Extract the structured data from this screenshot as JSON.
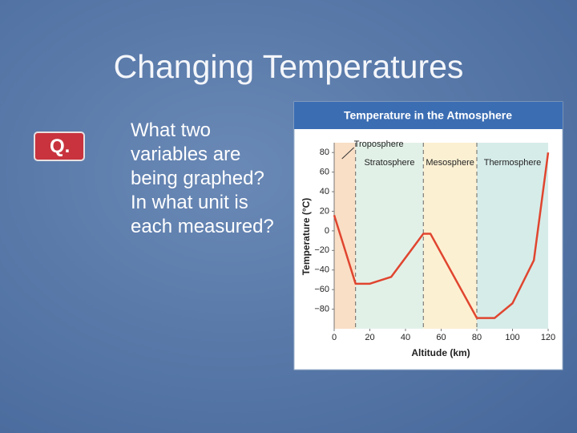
{
  "slide": {
    "title": "Changing Temperatures",
    "badge": "Q.",
    "question": "What two variables are being graphed? In what unit is each measured?"
  },
  "chart_data": {
    "type": "line",
    "title": "Temperature in the Atmosphere",
    "x_label": "Altitude (km)",
    "y_label": "Temperature (°C)",
    "x": [
      0,
      12,
      20,
      32,
      50,
      54,
      80,
      90,
      100,
      112,
      120
    ],
    "series": [
      {
        "color": "#e0452f",
        "values": [
          16,
          -54,
          -54,
          -47,
          -3,
          -3,
          -89,
          -89,
          -74,
          -30,
          80
        ]
      }
    ],
    "xlim": [
      0,
      120
    ],
    "xticks": [
      0,
      20,
      40,
      60,
      80,
      100,
      120
    ],
    "ylim": [
      -100,
      90
    ],
    "yticks": [
      {
        "value": -80,
        "label": "−80"
      },
      {
        "value": -60,
        "label": "−60"
      },
      {
        "value": -40,
        "label": "−40"
      },
      {
        "value": -20,
        "label": "−20"
      },
      0,
      20,
      40,
      60,
      80
    ],
    "layers": [
      {
        "name": "Troposphere",
        "start": 0,
        "end": 12,
        "color": "#f9dfc6"
      },
      {
        "name": "Stratosphere",
        "start": 12,
        "end": 50,
        "color": "#e2f1e8"
      },
      {
        "name": "Mesosphere",
        "start": 50,
        "end": 80,
        "color": "#fcf0d2"
      },
      {
        "name": "Thermosphere",
        "start": 80,
        "end": 120,
        "color": "#d6ece9"
      }
    ]
  }
}
